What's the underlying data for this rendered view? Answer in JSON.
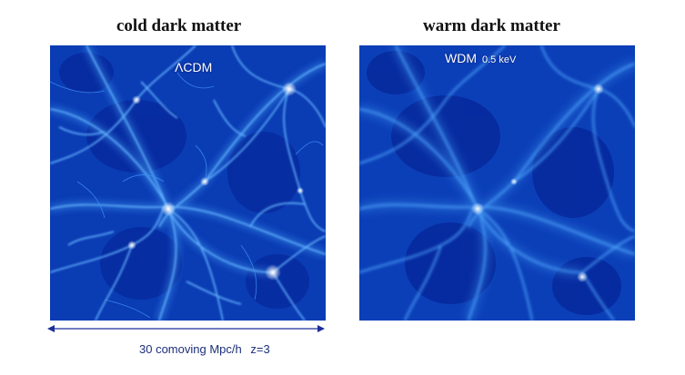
{
  "panels": [
    {
      "title": "cold dark matter",
      "label": "ΛCDM",
      "sublabel": "",
      "colors": {
        "background": "#0a3cb4",
        "filament": "#4fa8ff",
        "node": "#e8f6ff"
      }
    },
    {
      "title": "warm dark matter",
      "label": "WDM",
      "sublabel": "0.5 keV",
      "colors": {
        "background": "#0b3fb8",
        "filament": "#3f98f5",
        "node": "#dff0ff"
      }
    }
  ],
  "scale": {
    "length_text": "30 comoving Mpc/h",
    "redshift_text": "z=3",
    "arrow_color": "#1c2f9a"
  }
}
